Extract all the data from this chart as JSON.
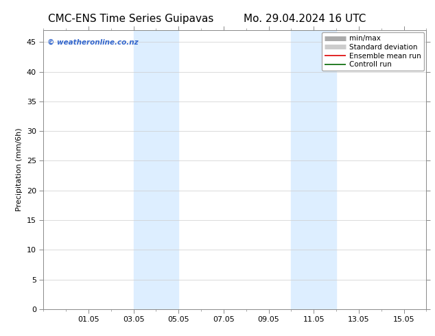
{
  "title_left": "CMC-ENS Time Series Guipavas",
  "title_right": "Mo. 29.04.2024 16 UTC",
  "ylabel": "Precipitation (mm/6h)",
  "ylim": [
    0,
    47
  ],
  "yticks": [
    0,
    5,
    10,
    15,
    20,
    25,
    30,
    35,
    40,
    45
  ],
  "xtick_labels": [
    "01.05",
    "03.05",
    "05.05",
    "07.05",
    "09.05",
    "11.05",
    "13.05",
    "15.05"
  ],
  "xtick_positions": [
    2,
    4,
    6,
    8,
    10,
    12,
    14,
    16
  ],
  "xlim": [
    0,
    17.0
  ],
  "shaded_bands": [
    [
      4.0,
      5.0
    ],
    [
      5.0,
      6.0
    ],
    [
      11.0,
      12.0
    ],
    [
      12.0,
      13.0
    ]
  ],
  "shade_color": "#ddeeff",
  "watermark": "© weatheronline.co.nz",
  "watermark_color": "#3366cc",
  "legend_items": [
    {
      "label": "min/max",
      "color": "#aaaaaa",
      "lw": 5
    },
    {
      "label": "Standard deviation",
      "color": "#cccccc",
      "lw": 5
    },
    {
      "label": "Ensemble mean run",
      "color": "#dd0000",
      "lw": 1.2
    },
    {
      "label": "Controll run",
      "color": "#006600",
      "lw": 1.2
    }
  ],
  "bg_color": "#ffffff",
  "grid_color": "#cccccc",
  "title_fontsize": 11,
  "tick_fontsize": 8,
  "ylabel_fontsize": 8,
  "legend_fontsize": 7.5
}
